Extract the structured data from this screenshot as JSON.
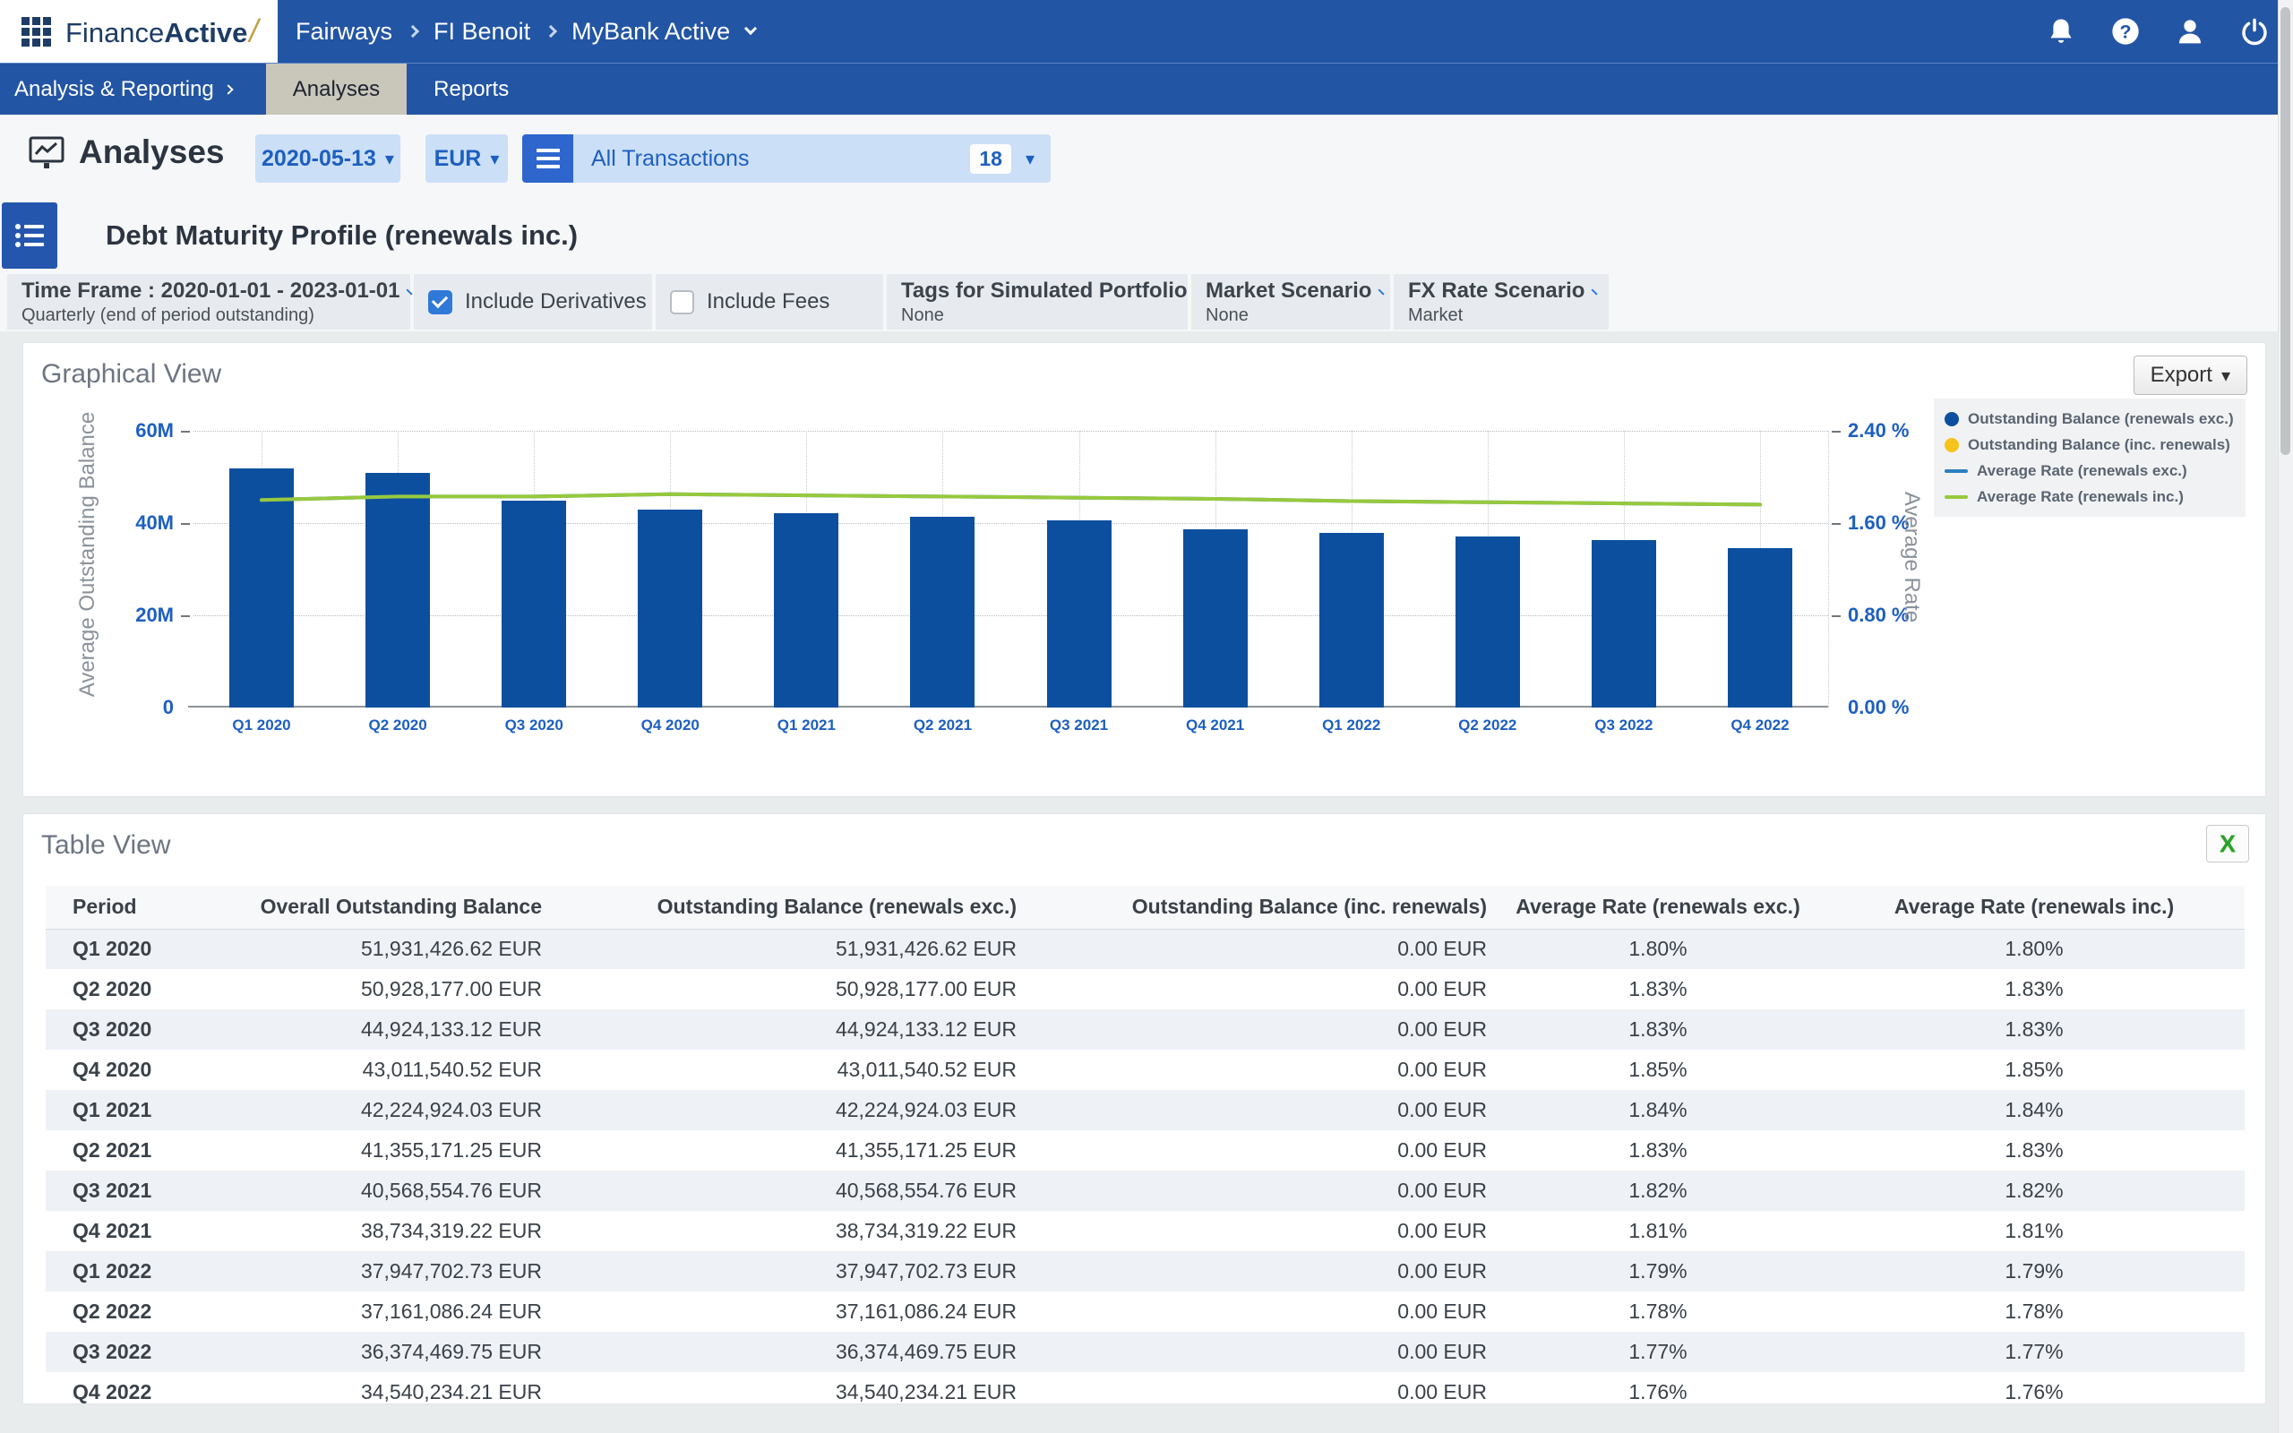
{
  "topbar": {
    "logo_part1": "Finance",
    "logo_part2": "Active",
    "logo_slash": "/",
    "breadcrumb": [
      "Fairways",
      "FI Benoit",
      "MyBank Active"
    ]
  },
  "nav": {
    "menu_label": "Analysis & Reporting",
    "tabs": [
      {
        "label": "Analyses",
        "active": true
      },
      {
        "label": "Reports",
        "active": false
      }
    ]
  },
  "toolbar": {
    "page_title": "Analyses",
    "date_value": "2020-05-13",
    "currency_value": "EUR",
    "portfolio_label": "All Transactions",
    "portfolio_count": "18"
  },
  "analysis_header": {
    "title": "Debt Maturity Profile (renewals inc.)"
  },
  "filters": {
    "time_frame_label": "Time Frame : 2020-01-01 - 2023-01-01",
    "time_frame_sub": "Quarterly (end of period outstanding)",
    "include_derivatives": {
      "label": "Include Derivatives",
      "checked": true
    },
    "include_fees": {
      "label": "Include Fees",
      "checked": false
    },
    "tags": {
      "label": "Tags for Simulated Portfolio",
      "value": "None"
    },
    "market_scenario": {
      "label": "Market Scenario",
      "value": "None"
    },
    "fx_rate_scenario": {
      "label": "FX Rate Scenario",
      "value": "Market"
    }
  },
  "graphical_view": {
    "title": "Graphical View",
    "export_label": "Export"
  },
  "chart_data": {
    "type": "bar",
    "categories": [
      "Q1 2020",
      "Q2 2020",
      "Q3 2020",
      "Q4 2020",
      "Q1 2021",
      "Q2 2021",
      "Q3 2021",
      "Q4 2021",
      "Q1 2022",
      "Q2 2022",
      "Q3 2022",
      "Q4 2022"
    ],
    "series": [
      {
        "name": "Outstanding Balance (renewals exc.)",
        "type": "bar",
        "color": "#0d4f9f",
        "values": [
          51931426.62,
          50928177.0,
          44924133.12,
          43011540.52,
          42224924.03,
          41355171.25,
          40568554.76,
          38734319.22,
          37947702.73,
          37161086.24,
          36374469.75,
          34540234.21
        ]
      },
      {
        "name": "Outstanding Balance (inc. renewals)",
        "type": "bar",
        "color": "#f6c21c",
        "values": [
          0,
          0,
          0,
          0,
          0,
          0,
          0,
          0,
          0,
          0,
          0,
          0
        ]
      },
      {
        "name": "Average Rate (renewals exc.)",
        "type": "line",
        "color": "#2d7fc1",
        "values": [
          1.8,
          1.83,
          1.83,
          1.85,
          1.84,
          1.83,
          1.82,
          1.81,
          1.79,
          1.78,
          1.77,
          1.76
        ]
      },
      {
        "name": "Average Rate (renewals inc.)",
        "type": "line",
        "color": "#97c93d",
        "values": [
          1.8,
          1.83,
          1.83,
          1.85,
          1.84,
          1.83,
          1.82,
          1.81,
          1.79,
          1.78,
          1.77,
          1.76
        ]
      }
    ],
    "y_left": {
      "label": "Average Outstanding Balance",
      "ticks": [
        "60M",
        "40M",
        "20M",
        "0"
      ],
      "max": 60000000,
      "min": 0
    },
    "y_right": {
      "label": "Average Rate",
      "ticks": [
        "2.40 %",
        "1.60 %",
        "0.80 %",
        "0.00 %"
      ],
      "max": 2.4,
      "min": 0
    },
    "grid": true,
    "legend_position": "top-right"
  },
  "table_view": {
    "title": "Table View",
    "columns": [
      "Period",
      "Overall Outstanding Balance",
      "Outstanding Balance (renewals exc.)",
      "Outstanding Balance (inc. renewals)",
      "Average Rate (renewals exc.)",
      "Average Rate (renewals inc.)"
    ],
    "rows": [
      [
        "Q1 2020",
        "51,931,426.62 EUR",
        "51,931,426.62 EUR",
        "0.00 EUR",
        "1.80%",
        "1.80%"
      ],
      [
        "Q2 2020",
        "50,928,177.00 EUR",
        "50,928,177.00 EUR",
        "0.00 EUR",
        "1.83%",
        "1.83%"
      ],
      [
        "Q3 2020",
        "44,924,133.12 EUR",
        "44,924,133.12 EUR",
        "0.00 EUR",
        "1.83%",
        "1.83%"
      ],
      [
        "Q4 2020",
        "43,011,540.52 EUR",
        "43,011,540.52 EUR",
        "0.00 EUR",
        "1.85%",
        "1.85%"
      ],
      [
        "Q1 2021",
        "42,224,924.03 EUR",
        "42,224,924.03 EUR",
        "0.00 EUR",
        "1.84%",
        "1.84%"
      ],
      [
        "Q2 2021",
        "41,355,171.25 EUR",
        "41,355,171.25 EUR",
        "0.00 EUR",
        "1.83%",
        "1.83%"
      ],
      [
        "Q3 2021",
        "40,568,554.76 EUR",
        "40,568,554.76 EUR",
        "0.00 EUR",
        "1.82%",
        "1.82%"
      ],
      [
        "Q4 2021",
        "38,734,319.22 EUR",
        "38,734,319.22 EUR",
        "0.00 EUR",
        "1.81%",
        "1.81%"
      ],
      [
        "Q1 2022",
        "37,947,702.73 EUR",
        "37,947,702.73 EUR",
        "0.00 EUR",
        "1.79%",
        "1.79%"
      ],
      [
        "Q2 2022",
        "37,161,086.24 EUR",
        "37,161,086.24 EUR",
        "0.00 EUR",
        "1.78%",
        "1.78%"
      ],
      [
        "Q3 2022",
        "36,374,469.75 EUR",
        "36,374,469.75 EUR",
        "0.00 EUR",
        "1.77%",
        "1.77%"
      ],
      [
        "Q4 2022",
        "34,540,234.21 EUR",
        "34,540,234.21 EUR",
        "0.00 EUR",
        "1.76%",
        "1.76%"
      ]
    ]
  }
}
